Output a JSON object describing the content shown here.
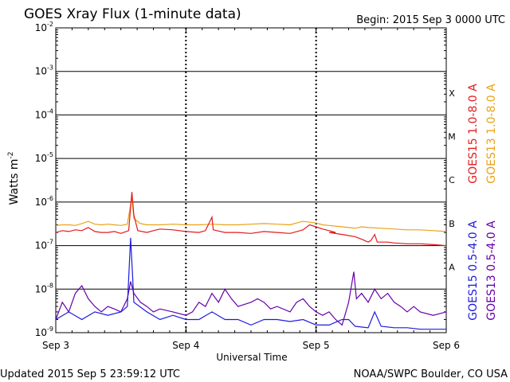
{
  "chart_data": {
    "type": "line",
    "title": "GOES Xray Flux (1-minute data)",
    "begin_label": "Begin:  2015 Sep 3 0000 UTC",
    "xlabel": "Universal Time",
    "ylabel": "Watts m",
    "ylabel_sup": "-2",
    "footer_left": "Updated 2015 Sep  5 23:59:12 UTC",
    "footer_right": "NOAA/SWPC Boulder, CO USA",
    "x_ticks": [
      "Sep 3",
      "Sep 4",
      "Sep 5",
      "Sep 6"
    ],
    "x_range_days": [
      0,
      3
    ],
    "y_scale": "log",
    "y_ticks": [
      {
        "mant": "10",
        "exp": "-9",
        "value": 1e-09
      },
      {
        "mant": "10",
        "exp": "-8",
        "value": 1e-08
      },
      {
        "mant": "10",
        "exp": "-7",
        "value": 1e-07
      },
      {
        "mant": "10",
        "exp": "-6",
        "value": 1e-06
      },
      {
        "mant": "10",
        "exp": "-5",
        "value": 1e-05
      },
      {
        "mant": "10",
        "exp": "-4",
        "value": 0.0001
      },
      {
        "mant": "10",
        "exp": "-3",
        "value": 0.001
      },
      {
        "mant": "10",
        "exp": "-2",
        "value": 0.01
      }
    ],
    "ylim": [
      1e-09,
      0.01
    ],
    "flare_classes": [
      {
        "label": "A",
        "value": 3.2e-08
      },
      {
        "label": "B",
        "value": 3.2e-07
      },
      {
        "label": "C",
        "value": 3.2e-06
      },
      {
        "label": "M",
        "value": 3.2e-05
      },
      {
        "label": "X",
        "value": 0.00032
      }
    ],
    "series": [
      {
        "name": "GOES15 1.0-8.0 A",
        "color": "#e41a1c",
        "points": [
          [
            0,
            2e-07
          ],
          [
            0.05,
            2.2e-07
          ],
          [
            0.1,
            2.1e-07
          ],
          [
            0.15,
            2.3e-07
          ],
          [
            0.2,
            2.2e-07
          ],
          [
            0.25,
            2.6e-07
          ],
          [
            0.3,
            2.1e-07
          ],
          [
            0.35,
            2e-07
          ],
          [
            0.4,
            2e-07
          ],
          [
            0.45,
            2.1e-07
          ],
          [
            0.5,
            1.9e-07
          ],
          [
            0.56,
            2.2e-07
          ],
          [
            0.585,
            1.7e-06
          ],
          [
            0.6,
            5e-07
          ],
          [
            0.63,
            2.2e-07
          ],
          [
            0.7,
            2e-07
          ],
          [
            0.75,
            2.2e-07
          ],
          [
            0.8,
            2.4e-07
          ],
          [
            0.9,
            2.3e-07
          ],
          [
            1.0,
            2.1e-07
          ],
          [
            1.1,
            2e-07
          ],
          [
            1.15,
            2.2e-07
          ],
          [
            1.2,
            4.5e-07
          ],
          [
            1.21,
            2.3e-07
          ],
          [
            1.3,
            2e-07
          ],
          [
            1.4,
            2e-07
          ],
          [
            1.5,
            1.9e-07
          ],
          [
            1.6,
            2.1e-07
          ],
          [
            1.7,
            2e-07
          ],
          [
            1.8,
            1.9e-07
          ],
          [
            1.9,
            2.3e-07
          ],
          [
            1.95,
            3e-07
          ],
          [
            2.0,
            2.7e-07
          ],
          [
            2.05,
            2.4e-07
          ],
          [
            2.1,
            2.2e-07
          ],
          [
            2.15,
            2e-07
          ],
          [
            2.1,
            2e-07
          ],
          [
            2.2,
            1.8e-07
          ],
          [
            2.25,
            1.7e-07
          ],
          [
            2.3,
            1.6e-07
          ],
          [
            2.35,
            1.4e-07
          ],
          [
            2.4,
            1.2e-07
          ],
          [
            2.42,
            1.3e-07
          ],
          [
            2.45,
            1.8e-07
          ],
          [
            2.47,
            1.2e-07
          ],
          [
            2.55,
            1.2e-07
          ],
          [
            2.6,
            1.15e-07
          ],
          [
            2.7,
            1.1e-07
          ],
          [
            2.8,
            1.1e-07
          ],
          [
            2.9,
            1.05e-07
          ],
          [
            3.0,
            1e-07
          ]
        ]
      },
      {
        "name": "GOES13 1.0-8.0 A",
        "color": "#e8a317",
        "points": [
          [
            0,
            2.9e-07
          ],
          [
            0.05,
            3e-07
          ],
          [
            0.1,
            3e-07
          ],
          [
            0.15,
            2.9e-07
          ],
          [
            0.2,
            3.2e-07
          ],
          [
            0.25,
            3.6e-07
          ],
          [
            0.3,
            3.1e-07
          ],
          [
            0.35,
            3e-07
          ],
          [
            0.4,
            3.1e-07
          ],
          [
            0.45,
            3e-07
          ],
          [
            0.5,
            2.9e-07
          ],
          [
            0.55,
            3.1e-07
          ],
          [
            0.585,
            1.3e-06
          ],
          [
            0.6,
            4.2e-07
          ],
          [
            0.65,
            3.2e-07
          ],
          [
            0.7,
            3e-07
          ],
          [
            0.8,
            3e-07
          ],
          [
            0.9,
            3.1e-07
          ],
          [
            1.0,
            3e-07
          ],
          [
            1.1,
            3e-07
          ],
          [
            1.2,
            3.1e-07
          ],
          [
            1.3,
            3e-07
          ],
          [
            1.4,
            3e-07
          ],
          [
            1.5,
            3.1e-07
          ],
          [
            1.6,
            3.2e-07
          ],
          [
            1.7,
            3.1e-07
          ],
          [
            1.8,
            3e-07
          ],
          [
            1.85,
            3.3e-07
          ],
          [
            1.9,
            3.6e-07
          ],
          [
            2.0,
            3.3e-07
          ],
          [
            2.05,
            3e-07
          ],
          [
            2.1,
            2.9e-07
          ],
          [
            2.2,
            2.7e-07
          ],
          [
            2.25,
            2.6e-07
          ],
          [
            2.3,
            2.5e-07
          ],
          [
            2.35,
            2.7e-07
          ],
          [
            2.4,
            2.6e-07
          ],
          [
            2.5,
            2.5e-07
          ],
          [
            2.6,
            2.4e-07
          ],
          [
            2.7,
            2.3e-07
          ],
          [
            2.8,
            2.3e-07
          ],
          [
            2.9,
            2.2e-07
          ],
          [
            3.0,
            2.1e-07
          ]
        ]
      },
      {
        "name": "GOES15 0.5-4.0 A",
        "color": "#1c1cdc",
        "points": [
          [
            0,
            2e-09
          ],
          [
            0.1,
            3e-09
          ],
          [
            0.2,
            2e-09
          ],
          [
            0.3,
            3e-09
          ],
          [
            0.4,
            2.5e-09
          ],
          [
            0.5,
            3e-09
          ],
          [
            0.55,
            4e-09
          ],
          [
            0.575,
            1.5e-07
          ],
          [
            0.59,
            2e-08
          ],
          [
            0.6,
            5e-09
          ],
          [
            0.7,
            3e-09
          ],
          [
            0.8,
            2e-09
          ],
          [
            0.9,
            2.5e-09
          ],
          [
            1.0,
            2e-09
          ],
          [
            1.1,
            2e-09
          ],
          [
            1.2,
            3e-09
          ],
          [
            1.3,
            2e-09
          ],
          [
            1.4,
            2e-09
          ],
          [
            1.5,
            1.5e-09
          ],
          [
            1.6,
            2e-09
          ],
          [
            1.7,
            2e-09
          ],
          [
            1.8,
            1.8e-09
          ],
          [
            1.9,
            2e-09
          ],
          [
            2.0,
            1.5e-09
          ],
          [
            2.1,
            1.5e-09
          ],
          [
            2.2,
            2e-09
          ],
          [
            2.25,
            2e-09
          ],
          [
            2.3,
            1.4e-09
          ],
          [
            2.4,
            1.3e-09
          ],
          [
            2.45,
            3e-09
          ],
          [
            2.5,
            1.4e-09
          ],
          [
            2.6,
            1.3e-09
          ],
          [
            2.7,
            1.3e-09
          ],
          [
            2.8,
            1.2e-09
          ],
          [
            2.9,
            1.2e-09
          ],
          [
            3.0,
            1.2e-09
          ]
        ]
      },
      {
        "name": "GOES13 0.5-4.0 A",
        "color": "#6600aa",
        "points": [
          [
            0,
            2e-09
          ],
          [
            0.05,
            5e-09
          ],
          [
            0.1,
            3e-09
          ],
          [
            0.15,
            8e-09
          ],
          [
            0.2,
            1.2e-08
          ],
          [
            0.25,
            6e-09
          ],
          [
            0.3,
            4e-09
          ],
          [
            0.35,
            3e-09
          ],
          [
            0.4,
            4e-09
          ],
          [
            0.45,
            3.5e-09
          ],
          [
            0.5,
            3e-09
          ],
          [
            0.55,
            6e-09
          ],
          [
            0.575,
            1.5e-08
          ],
          [
            0.6,
            8e-09
          ],
          [
            0.65,
            5e-09
          ],
          [
            0.7,
            4e-09
          ],
          [
            0.75,
            3e-09
          ],
          [
            0.8,
            3.5e-09
          ],
          [
            0.9,
            3e-09
          ],
          [
            1.0,
            2.5e-09
          ],
          [
            1.05,
            3e-09
          ],
          [
            1.1,
            5e-09
          ],
          [
            1.15,
            4e-09
          ],
          [
            1.2,
            8e-09
          ],
          [
            1.25,
            5e-09
          ],
          [
            1.3,
            1e-08
          ],
          [
            1.35,
            6e-09
          ],
          [
            1.4,
            4e-09
          ],
          [
            1.5,
            5e-09
          ],
          [
            1.55,
            6e-09
          ],
          [
            1.6,
            5e-09
          ],
          [
            1.65,
            3.5e-09
          ],
          [
            1.7,
            4e-09
          ],
          [
            1.8,
            3e-09
          ],
          [
            1.85,
            5e-09
          ],
          [
            1.9,
            6e-09
          ],
          [
            1.95,
            4e-09
          ],
          [
            2.0,
            3e-09
          ],
          [
            2.05,
            2.5e-09
          ],
          [
            2.1,
            3e-09
          ],
          [
            2.15,
            2e-09
          ],
          [
            2.2,
            1.5e-09
          ],
          [
            2.25,
            5e-09
          ],
          [
            2.29,
            2.5e-08
          ],
          [
            2.31,
            6e-09
          ],
          [
            2.35,
            8e-09
          ],
          [
            2.4,
            5e-09
          ],
          [
            2.45,
            1e-08
          ],
          [
            2.5,
            6e-09
          ],
          [
            2.55,
            8e-09
          ],
          [
            2.6,
            5e-09
          ],
          [
            2.65,
            4e-09
          ],
          [
            2.7,
            3e-09
          ],
          [
            2.75,
            4e-09
          ],
          [
            2.8,
            3e-09
          ],
          [
            2.9,
            2.5e-09
          ],
          [
            3.0,
            3e-09
          ]
        ]
      }
    ]
  }
}
